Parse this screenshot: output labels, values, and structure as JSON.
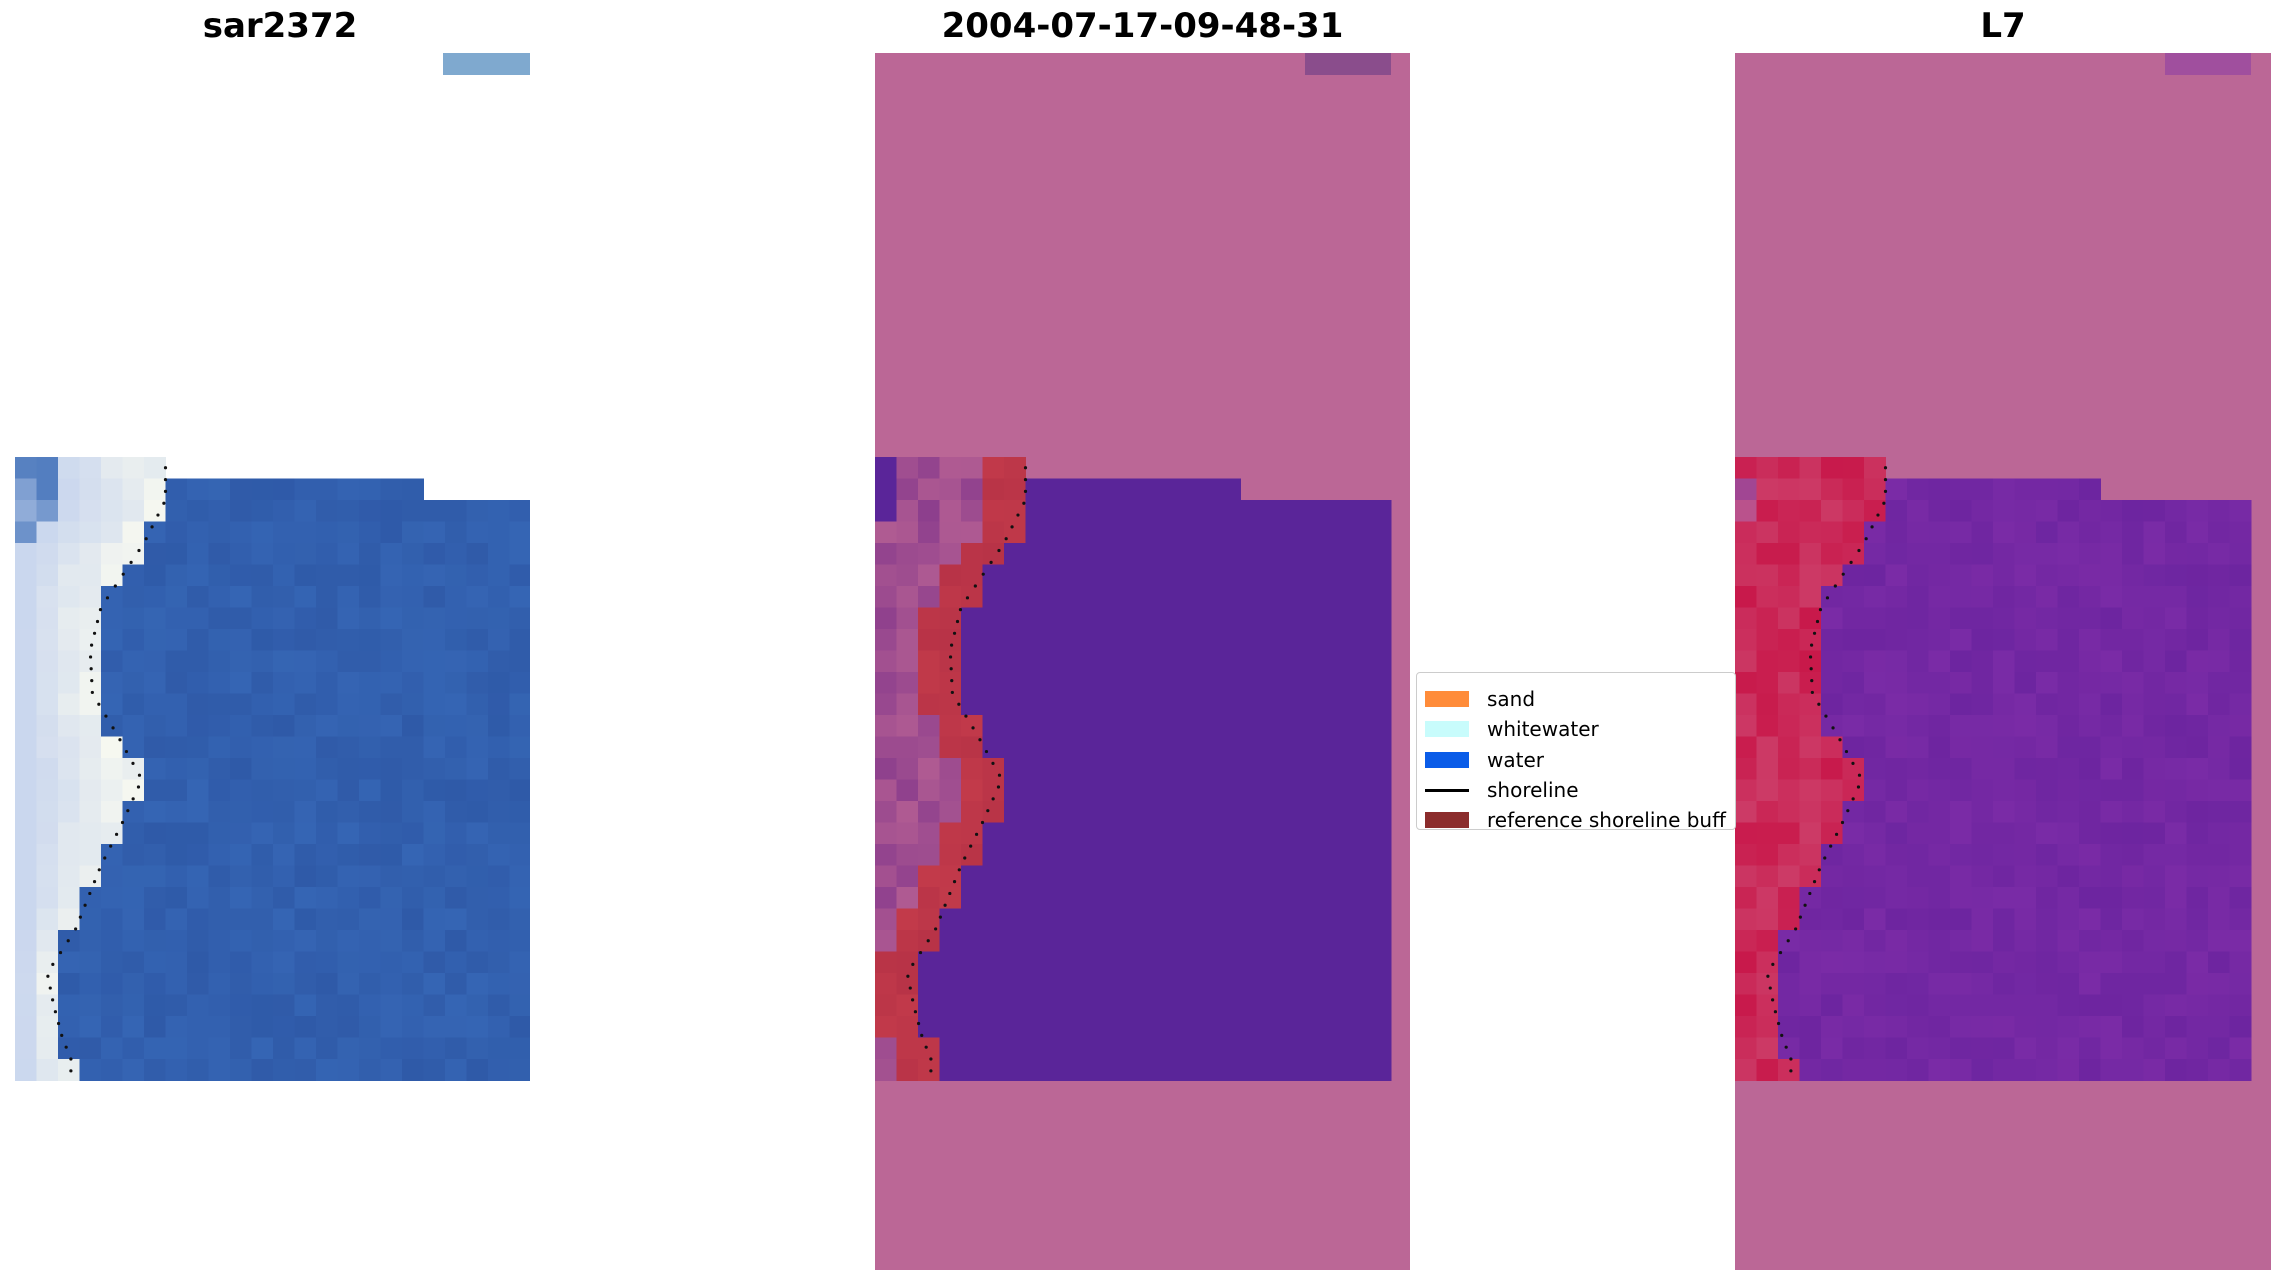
{
  "panels": [
    {
      "title": "sar2372"
    },
    {
      "title": "2004-07-17-09-48-31"
    },
    {
      "title": "L7"
    }
  ],
  "legend": {
    "items": [
      {
        "label": "sand",
        "type": "patch",
        "color": "#ff8c3a"
      },
      {
        "label": "whitewater",
        "type": "patch",
        "color": "#c8fcfc"
      },
      {
        "label": "water",
        "type": "patch",
        "color": "#0a5ce8"
      },
      {
        "label": "shoreline",
        "type": "line",
        "color": "#000000"
      },
      {
        "label": "reference shoreline buff",
        "type": "patch",
        "color": "#8b2c2c"
      }
    ]
  },
  "colors": {
    "sea_blue": "#3565b4",
    "foam_white": "#eef3f8",
    "nodata_pink": "#bb6796",
    "index_water_purple": "#5a2599",
    "classified_red": "#c23a4a",
    "l7_high_red": "#c8184a",
    "l7_low_purple": "#7a2ba6"
  }
}
